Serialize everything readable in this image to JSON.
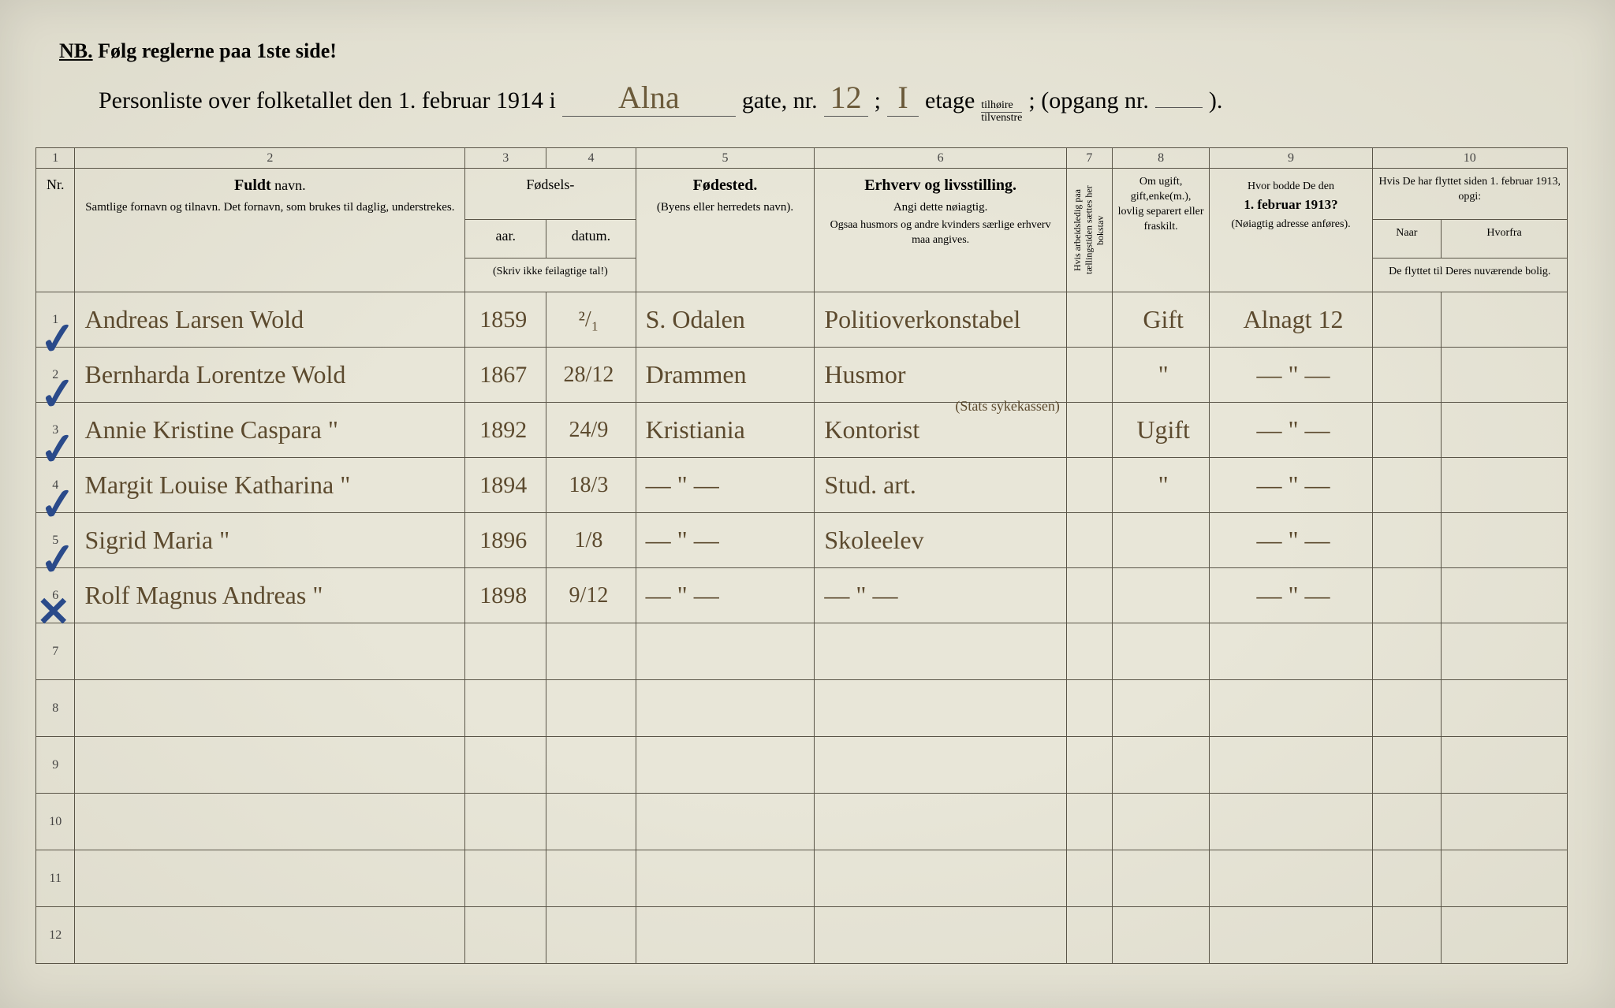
{
  "colors": {
    "paper": "#e8e6d8",
    "ink_print": "#333333",
    "ink_hand": "#5c4a2e",
    "ink_blue": "#2a4a8a",
    "rule": "#5a5548"
  },
  "typography": {
    "print_family": "Georgia, Times New Roman, serif",
    "script_family": "Brush Script MT, Segoe Script, cursive",
    "header_fontsize_pt": 14,
    "hand_fontsize_pt": 24
  },
  "nb": {
    "label": "NB.",
    "text": "Følg reglerne paa 1ste side!"
  },
  "title": {
    "prefix": "Personliste over folketallet den 1. februar 1914 i",
    "street": "Alna",
    "gate_label": "gate, nr.",
    "gate_nr": "12",
    "semicolon": ";",
    "floor": "I",
    "etage_label": "etage",
    "stacked_top": "tilhøire",
    "stacked_bot": "tilvenstre",
    "opgang": "; (opgang nr.",
    "opgang_val": "",
    "close": ")."
  },
  "col_numbers": [
    "1",
    "2",
    "3",
    "4",
    "5",
    "6",
    "7",
    "8",
    "9",
    "10"
  ],
  "headers": {
    "nr": "Nr.",
    "name_strong": "Fuldt",
    "name_rest": "navn.",
    "name_sub": "Samtlige fornavn og tilnavn.  Det fornavn, som brukes til daglig, understrekes.",
    "fodsels": "Fødsels-",
    "aar": "aar.",
    "datum": "datum.",
    "skriv": "(Skriv ikke feilagtige tal!)",
    "fodested": "Fødested.",
    "fodested_sub": "(Byens eller herredets navn).",
    "erhverv": "Erhverv og livsstilling.",
    "erhverv_sub1": "Angi dette nøiagtig.",
    "erhverv_sub2": "Ogsaa husmors og andre kvinders særlige erhverv maa angives.",
    "col7": "Hvis arbeidsledig paa tællingstiden sættes her bokstav",
    "col8": "Om ugift, gift,enke(m.), lovlig separert eller fraskilt.",
    "col9_a": "Hvor bodde De den",
    "col9_b": "1. februar 1913?",
    "col9_c": "(Nøiagtig adresse anføres).",
    "col10_top": "Hvis De har flyttet siden 1. februar 1913, opgi:",
    "col10_naar": "Naar",
    "col10_hvorfra": "Hvorfra",
    "col10_sub": "De flyttet til Deres nuværende bolig."
  },
  "checkmarks": [
    "✓",
    "✓",
    "✓",
    "✓",
    "✓",
    "✕"
  ],
  "rows": [
    {
      "nr": "1",
      "name": "Andreas Larsen Wold",
      "year": "1859",
      "date": "²/₁",
      "birthplace": "S. Odalen",
      "occupation": "Politioverkonstabel",
      "col7": "",
      "marital": "Gift",
      "prev_addr": "Alnagt 12",
      "naar": "",
      "hvorfra": ""
    },
    {
      "nr": "2",
      "name": "Bernharda Lorentze Wold",
      "year": "1867",
      "date": "28/12",
      "birthplace": "Drammen",
      "occupation": "Husmor",
      "col7": "",
      "marital": "\"",
      "prev_addr": "— \" —",
      "naar": "",
      "hvorfra": ""
    },
    {
      "nr": "3",
      "name": "Annie Kristine Caspara \"",
      "year": "1892",
      "date": "24/9",
      "birthplace": "Kristiania",
      "occupation": "Kontorist",
      "occ_note": "(Stats sykekassen)",
      "col7": "",
      "marital": "Ugift",
      "prev_addr": "— \" —",
      "naar": "",
      "hvorfra": ""
    },
    {
      "nr": "4",
      "name": "Margit Louise Katharina \"",
      "year": "1894",
      "date": "18/3",
      "birthplace": "— \" —",
      "occupation": "Stud. art.",
      "col7": "",
      "marital": "\"",
      "prev_addr": "— \" —",
      "naar": "",
      "hvorfra": ""
    },
    {
      "nr": "5",
      "name": "Sigrid Maria        \"",
      "year": "1896",
      "date": "1/8",
      "birthplace": "— \" —",
      "occupation": "Skoleelev",
      "col7": "",
      "marital": "",
      "prev_addr": "— \" —",
      "naar": "",
      "hvorfra": ""
    },
    {
      "nr": "6",
      "name": "Rolf Magnus Andreas \"",
      "year": "1898",
      "date": "9/12",
      "birthplace": "— \" —",
      "occupation": "— \" —",
      "col7": "",
      "marital": "",
      "prev_addr": "— \" —",
      "naar": "",
      "hvorfra": ""
    }
  ],
  "empty_rows": [
    "7",
    "8",
    "9",
    "10",
    "11",
    "12"
  ]
}
